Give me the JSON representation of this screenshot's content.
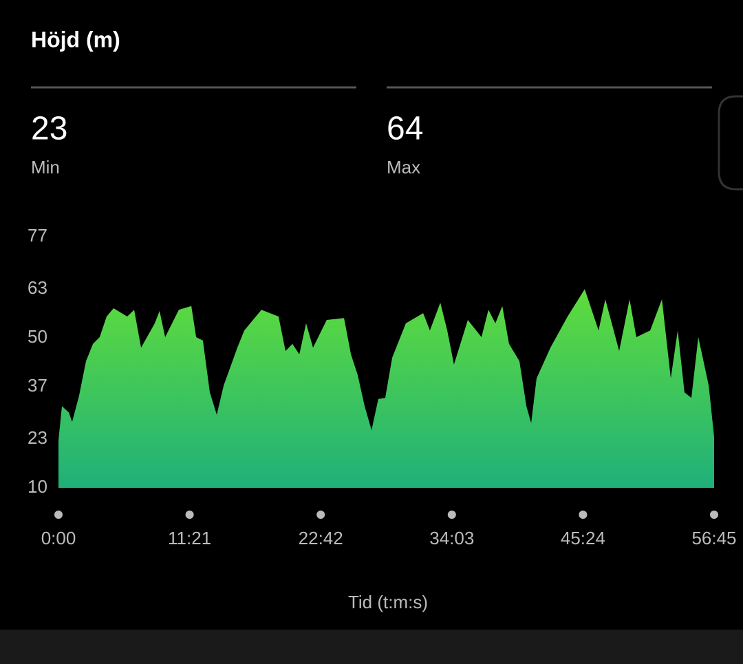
{
  "header": {
    "title": "Höjd (m)",
    "stats": [
      {
        "value": 23,
        "label": "Min"
      },
      {
        "value": 64,
        "label": "Max"
      }
    ]
  },
  "chart_data": {
    "type": "area",
    "x_label": "Tid (t:m:s)",
    "x": [
      0,
      18,
      54,
      71,
      107,
      143,
      179,
      214,
      250,
      286,
      357,
      393,
      429,
      500,
      525,
      554,
      625,
      690,
      715,
      750,
      786,
      822,
      858,
      929,
      965,
      1054,
      1143,
      1179,
      1215,
      1251,
      1286,
      1322,
      1393,
      1483,
      1519,
      1554,
      1590,
      1626,
      1661,
      1697,
      1733,
      1804,
      1894,
      1929,
      1983,
      2019,
      2054,
      2126,
      2197,
      2233,
      2269,
      2305,
      2340,
      2394,
      2430,
      2455,
      2483,
      2555,
      2644,
      2733,
      2805,
      2840,
      2912,
      2966,
      3001,
      3073,
      3134,
      3180,
      3216,
      3251,
      3287,
      3323,
      3377,
      3405
    ],
    "series": [
      {
        "name": "Höjd",
        "color": "#5fdc3c",
        "values": [
          22.7,
          31.8,
          30.1,
          27.6,
          34.6,
          43.8,
          48.4,
          50.2,
          55.7,
          57.9,
          55.7,
          57.5,
          47.4,
          53.9,
          57.2,
          50.2,
          57.5,
          58.5,
          50.2,
          49.3,
          35.5,
          29.5,
          37.3,
          47.4,
          52.0,
          57.5,
          55.7,
          46.5,
          48.4,
          45.6,
          53.9,
          47.4,
          54.8,
          55.3,
          45.6,
          40.1,
          31.8,
          25.4,
          33.7,
          34.0,
          44.7,
          53.9,
          56.6,
          52.0,
          59.4,
          52.0,
          42.9,
          54.8,
          50.2,
          57.5,
          53.9,
          58.5,
          48.4,
          43.8,
          31.8,
          27.3,
          39.2,
          47.4,
          55.7,
          63.0,
          52.0,
          60.3,
          46.5,
          60.3,
          50.2,
          52.0,
          60.3,
          39.2,
          52.0,
          35.5,
          34.0,
          50.2,
          37.3,
          23.6
        ]
      }
    ],
    "xlim": [
      0,
      3405
    ],
    "xticks": [
      {
        "value": 0,
        "label": "0:00"
      },
      {
        "value": 681,
        "label": "11:21"
      },
      {
        "value": 1362,
        "label": "22:42"
      },
      {
        "value": 2043,
        "label": "34:03"
      },
      {
        "value": 2724,
        "label": "45:24"
      },
      {
        "value": 3405,
        "label": "56:45"
      }
    ],
    "ylim": [
      10,
      77
    ],
    "yticks": [
      10,
      23,
      37,
      50,
      63,
      77
    ],
    "bottom_color": "#1fb07a"
  }
}
